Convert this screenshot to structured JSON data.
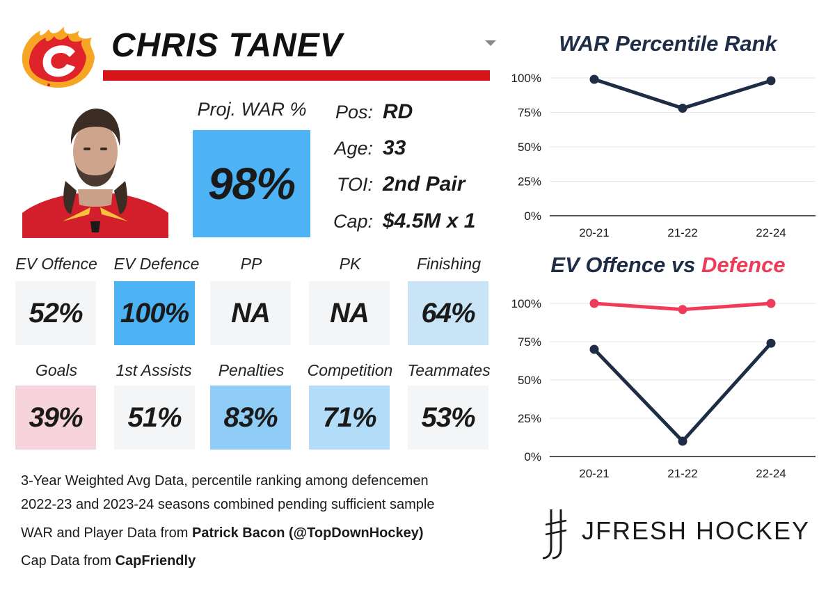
{
  "player": {
    "name": "CHRIS TANEV",
    "team_logo_icon": "flames-logo-icon",
    "photo_icon": "player-headshot-icon"
  },
  "proj_war": {
    "label": "Proj. WAR %",
    "value": "98%",
    "color": "#4db3f5"
  },
  "info": [
    {
      "label": "Pos:",
      "value": "RD"
    },
    {
      "label": "Age:",
      "value": "33"
    },
    {
      "label": "TOI:",
      "value": "2nd Pair"
    },
    {
      "label": "Cap:",
      "value": "$4.5M x 1"
    }
  ],
  "tiles_row1": [
    {
      "label": "EV Offence",
      "value": "52%",
      "color": "#f4f5f7"
    },
    {
      "label": "EV Defence",
      "value": "100%",
      "color": "#4db3f5"
    },
    {
      "label": "PP",
      "value": "NA",
      "color": "#f4f5f7"
    },
    {
      "label": "PK",
      "value": "NA",
      "color": "#f4f5f7"
    },
    {
      "label": "Finishing",
      "value": "64%",
      "color": "#c9e3f7"
    }
  ],
  "tiles_row2": [
    {
      "label": "Goals",
      "value": "39%",
      "color": "#f7d4dc"
    },
    {
      "label": "1st Assists",
      "value": "51%",
      "color": "#f4f5f7"
    },
    {
      "label": "Penalties",
      "value": "83%",
      "color": "#8fcdf7"
    },
    {
      "label": "Competition",
      "value": "71%",
      "color": "#b2dcf8"
    },
    {
      "label": "Teammates",
      "value": "53%",
      "color": "#f4f5f7"
    }
  ],
  "notes": {
    "line1": "3-Year Weighted Avg Data, percentile ranking among defencemen",
    "line2": "2022-23 and 2023-24 seasons combined pending sufficient sample",
    "line3_prefix": "WAR and Player Data from ",
    "line3_bold": "Patrick Bacon (@TopDownHockey)",
    "line4_prefix": "Cap Data from ",
    "line4_bold": "CapFriendly"
  },
  "brand": {
    "text": "JFRESH HOCKEY",
    "icon": "jfresh-logo-icon"
  },
  "colors": {
    "navy": "#1e2d45",
    "red": "#f03a5a",
    "team_red": "#d7141a"
  },
  "chart_data": [
    {
      "type": "line",
      "title": "WAR Percentile Rank",
      "categories": [
        "20-21",
        "21-22",
        "22-24"
      ],
      "series": [
        {
          "values": [
            99,
            78,
            98
          ],
          "color": "#1e2d45"
        }
      ],
      "ylim": [
        0,
        100
      ],
      "yticks": [
        "0%",
        "25%",
        "50%",
        "75%",
        "100%"
      ],
      "grid": true
    },
    {
      "type": "line",
      "title_part1": "EV Offence vs ",
      "title_part2": "Defence",
      "categories": [
        "20-21",
        "21-22",
        "22-24"
      ],
      "series": [
        {
          "values": [
            100,
            96,
            100
          ],
          "color": "#f03a5a"
        },
        {
          "values": [
            70,
            10,
            74
          ],
          "color": "#1e2d45"
        }
      ],
      "ylim": [
        0,
        100
      ],
      "yticks": [
        "0%",
        "25%",
        "50%",
        "75%",
        "100%"
      ],
      "grid": true
    }
  ]
}
